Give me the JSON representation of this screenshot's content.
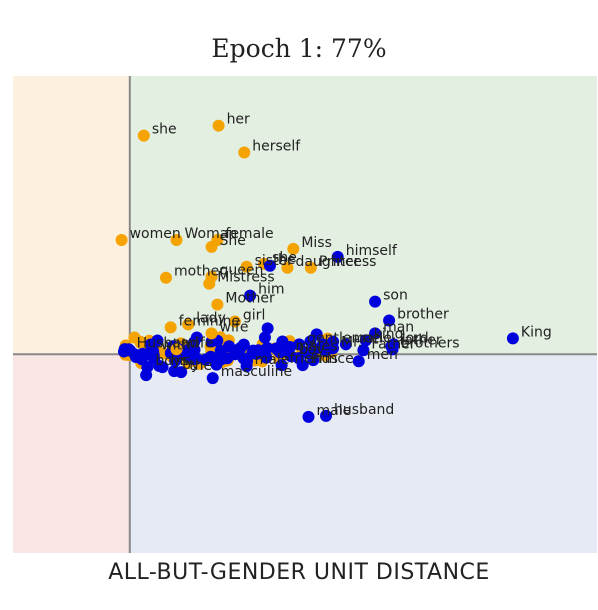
{
  "chart_data": {
    "type": "scatter",
    "title": "Epoch 1: 77%",
    "xlabel": "ALL-BUT-GENDER UNIT DISTANCE",
    "ylabel": "",
    "xlim": [
      -0.1,
      0.4
    ],
    "ylim": [
      -0.2,
      0.28
    ],
    "colors": {
      "female": "#f5a300",
      "male": "#0000dd",
      "q_top_left": "#fdf0df",
      "q_top_right": "#e3efe1",
      "q_bottom_left": "#f7e6e4",
      "q_bottom_right": "#e6eaf4",
      "axis": "#888888"
    },
    "series": [
      {
        "group": "female",
        "points": [
          {
            "x": 0.012,
            "y": 0.22,
            "label": "she"
          },
          {
            "x": 0.076,
            "y": 0.23,
            "label": "her"
          },
          {
            "x": 0.098,
            "y": 0.203,
            "label": "herself"
          },
          {
            "x": -0.007,
            "y": 0.115,
            "label": "women"
          },
          {
            "x": 0.04,
            "y": 0.115,
            "label": "Woman"
          },
          {
            "x": 0.075,
            "y": 0.115,
            "label": "female"
          },
          {
            "x": 0.07,
            "y": 0.108,
            "label": "She"
          },
          {
            "x": 0.14,
            "y": 0.106,
            "label": "Miss"
          },
          {
            "x": 0.155,
            "y": 0.087,
            "label": "Princess"
          },
          {
            "x": 0.135,
            "y": 0.087,
            "label": "daughter"
          },
          {
            "x": 0.115,
            "y": 0.091,
            "label": "she"
          },
          {
            "x": 0.1,
            "y": 0.088,
            "label": "sister"
          },
          {
            "x": 0.031,
            "y": 0.077,
            "label": "mother"
          },
          {
            "x": 0.07,
            "y": 0.078,
            "label": "queen"
          },
          {
            "x": 0.068,
            "y": 0.071,
            "label": "Mistress"
          },
          {
            "x": 0.075,
            "y": 0.05,
            "label": "Mother"
          },
          {
            "x": 0.035,
            "y": 0.027,
            "label": "feminine"
          },
          {
            "x": 0.05,
            "y": 0.03,
            "label": "lady"
          },
          {
            "x": 0.09,
            "y": 0.033,
            "label": "girl"
          },
          {
            "x": 0.07,
            "y": 0.021,
            "label": "wife"
          },
          {
            "x": 0.04,
            "y": 0.005,
            "label": "wife"
          }
        ]
      },
      {
        "group": "male",
        "points": [
          {
            "x": 0.178,
            "y": 0.098,
            "label": "himself"
          },
          {
            "x": 0.12,
            "y": 0.089,
            "label": "he"
          },
          {
            "x": 0.103,
            "y": 0.059,
            "label": "him"
          },
          {
            "x": 0.21,
            "y": 0.053,
            "label": "son"
          },
          {
            "x": 0.222,
            "y": 0.034,
            "label": "brother"
          },
          {
            "x": 0.21,
            "y": 0.021,
            "label": "man"
          },
          {
            "x": 0.328,
            "y": 0.016,
            "label": "King"
          },
          {
            "x": 0.202,
            "y": 0.014,
            "label": "king"
          },
          {
            "x": 0.226,
            "y": 0.01,
            "label": "lord"
          },
          {
            "x": 0.224,
            "y": 0.008,
            "label": "father"
          },
          {
            "x": 0.185,
            "y": 0.01,
            "label": "uncle"
          },
          {
            "x": 0.145,
            "y": 0.01,
            "label": "gentleman"
          },
          {
            "x": 0.2,
            "y": 0.004,
            "label": "Father"
          },
          {
            "x": 0.225,
            "y": 0.005,
            "label": "brothers"
          },
          {
            "x": 0.174,
            "y": 0.006,
            "label": "Mr."
          },
          {
            "x": 0.138,
            "y": -0.002,
            "label": "boy"
          },
          {
            "x": 0.135,
            "y": 0.002,
            "label": "males"
          },
          {
            "x": 0.196,
            "y": -0.007,
            "label": "men"
          },
          {
            "x": 0.148,
            "y": -0.011,
            "label": "Prince"
          },
          {
            "x": 0.13,
            "y": -0.011,
            "label": "friends"
          },
          {
            "x": -0.001,
            "y": 0.005,
            "label": "Husband"
          },
          {
            "x": 0.02,
            "y": 0.003,
            "label": "with"
          },
          {
            "x": 0.028,
            "y": -0.013,
            "label": "his"
          },
          {
            "x": 0.015,
            "y": -0.013,
            "label": "boys"
          },
          {
            "x": 0.038,
            "y": -0.017,
            "label": "by"
          },
          {
            "x": 0.044,
            "y": -0.018,
            "label": "the"
          },
          {
            "x": 0.071,
            "y": -0.024,
            "label": "masculine"
          },
          {
            "x": 0.1,
            "y": -0.012,
            "label": "male"
          },
          {
            "x": 0.153,
            "y": -0.063,
            "label": "male"
          },
          {
            "x": 0.168,
            "y": -0.062,
            "label": "husband"
          },
          {
            "x": 0.014,
            "y": -0.021,
            "label": ""
          },
          {
            "x": 0.055,
            "y": 0.012,
            "label": ""
          },
          {
            "x": 0.085,
            "y": 0.008,
            "label": ""
          },
          {
            "x": 0.11,
            "y": 0.004,
            "label": ""
          },
          {
            "x": 0.16,
            "y": 0.02,
            "label": ""
          },
          {
            "x": 0.118,
            "y": 0.026,
            "label": ""
          }
        ]
      }
    ],
    "cluster": {
      "center": [
        0.085,
        0.003
      ],
      "spread": [
        0.09,
        0.008
      ],
      "female_count": 60,
      "male_count": 70
    }
  }
}
